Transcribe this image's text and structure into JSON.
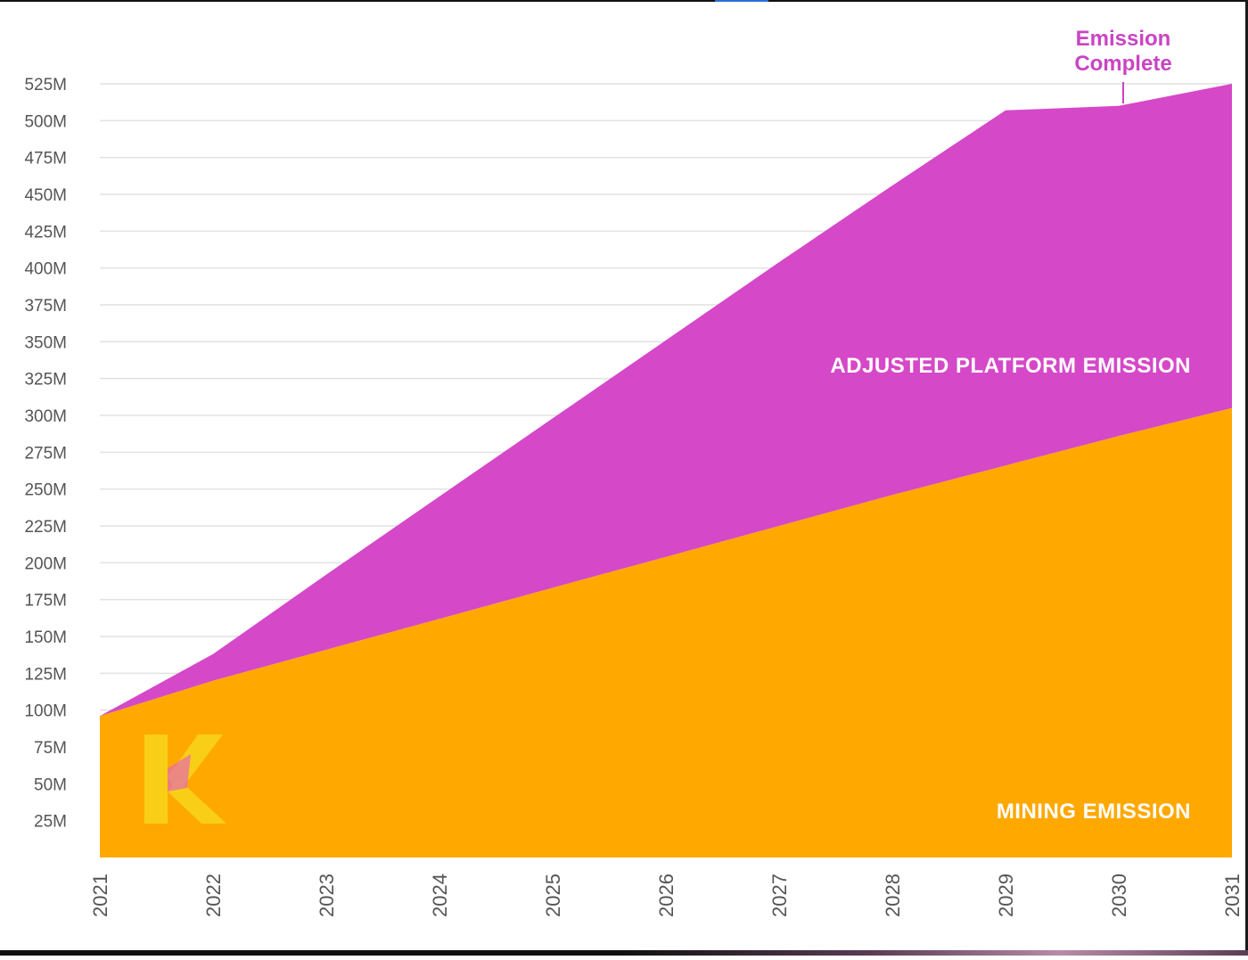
{
  "chart_data": {
    "type": "area",
    "stacked": true,
    "x": [
      2021,
      2022,
      2023,
      2024,
      2025,
      2026,
      2027,
      2028,
      2029,
      2030,
      2031
    ],
    "x_tick_labels": [
      "2021",
      "2022",
      "2023",
      "2024",
      "2025",
      "2026",
      "2027",
      "2028",
      "2029",
      "2030",
      "2031"
    ],
    "y_tick_labels": [
      "525M",
      "500M",
      "475M",
      "450M",
      "425M",
      "400M",
      "375M",
      "350M",
      "325M",
      "300M",
      "275M",
      "250M",
      "225M",
      "200M",
      "175M",
      "150M",
      "125M",
      "100M",
      "75M",
      "50M",
      "25M"
    ],
    "ylim": [
      0,
      525
    ],
    "y_unit": "M",
    "grid": true,
    "series": [
      {
        "name": "MINING EMISSION",
        "color": "#ffa800",
        "values": [
          96,
          120,
          141,
          162,
          183,
          204,
          225,
          246,
          266,
          286,
          305
        ]
      },
      {
        "name": "ADJUSTED PLATFORM EMISSION",
        "color": "#d548c8",
        "values": [
          0,
          18,
          51,
          83,
          115,
          147,
          179,
          210,
          241,
          224,
          220
        ]
      }
    ],
    "annotation": {
      "text_line1": "Emission",
      "text_line2": "Complete",
      "x": 2030,
      "color": "#c944c4"
    }
  },
  "colors": {
    "grid": "#e2e2e2",
    "tick_text": "#555555",
    "series_label_text": "#ffffff",
    "logo": "#f8d51a"
  },
  "logo": {
    "letter": "K",
    "icon": "k-logo-icon"
  }
}
